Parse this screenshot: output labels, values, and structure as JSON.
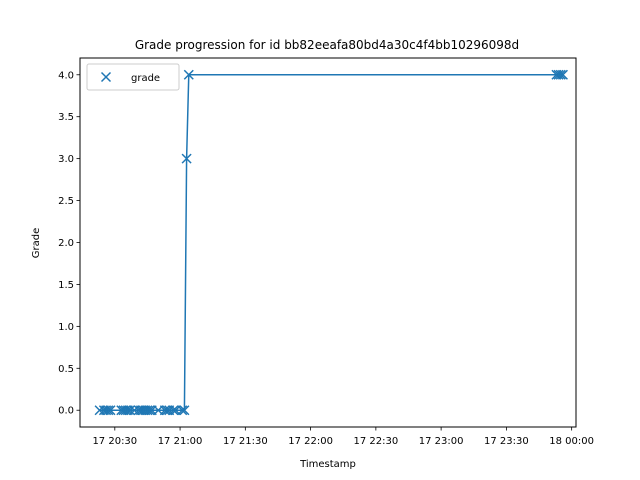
{
  "chart_data": {
    "type": "line",
    "title": "Grade progression for id bb82eeafa80bd4a30c4f4bb10296098d",
    "xlabel": "Timestamp",
    "ylabel": "Grade",
    "x_ticks": [
      "17 20:30",
      "17 21:00",
      "17 21:30",
      "17 22:00",
      "17 22:30",
      "17 23:00",
      "17 23:30",
      "18 00:00"
    ],
    "y_ticks": [
      "0.0",
      "0.5",
      "1.0",
      "1.5",
      "2.0",
      "2.5",
      "3.0",
      "3.5",
      "4.0"
    ],
    "xlim": [
      "20:14",
      "00:02"
    ],
    "ylim": [
      -0.2,
      4.2
    ],
    "grid": false,
    "legend": {
      "position": "top-left",
      "entries": [
        "grade"
      ]
    },
    "series": [
      {
        "name": "grade",
        "marker": "x",
        "color": "#1f77b4",
        "points": [
          {
            "x": "20:23",
            "y": 0
          },
          {
            "x": "20:25",
            "y": 0
          },
          {
            "x": "20:26",
            "y": 0
          },
          {
            "x": "20:27",
            "y": 0
          },
          {
            "x": "20:28",
            "y": 0
          },
          {
            "x": "20:33",
            "y": 0
          },
          {
            "x": "20:34",
            "y": 0
          },
          {
            "x": "20:35",
            "y": 0
          },
          {
            "x": "20:36",
            "y": 0
          },
          {
            "x": "20:37",
            "y": 0
          },
          {
            "x": "20:39",
            "y": 0
          },
          {
            "x": "20:41",
            "y": 0
          },
          {
            "x": "20:42",
            "y": 0
          },
          {
            "x": "20:43",
            "y": 0
          },
          {
            "x": "20:44",
            "y": 0
          },
          {
            "x": "20:45",
            "y": 0
          },
          {
            "x": "20:46",
            "y": 0
          },
          {
            "x": "20:47",
            "y": 0
          },
          {
            "x": "20:50",
            "y": 0
          },
          {
            "x": "20:53",
            "y": 0
          },
          {
            "x": "20:54",
            "y": 0
          },
          {
            "x": "20:55",
            "y": 0
          },
          {
            "x": "20:57",
            "y": 0
          },
          {
            "x": "20:58",
            "y": 0
          },
          {
            "x": "21:01",
            "y": 0
          },
          {
            "x": "21:02",
            "y": 0
          },
          {
            "x": "21:03",
            "y": 3
          },
          {
            "x": "21:04",
            "y": 4
          },
          {
            "x": "23:53",
            "y": 4
          },
          {
            "x": "23:54",
            "y": 4
          },
          {
            "x": "23:55",
            "y": 4
          },
          {
            "x": "23:56",
            "y": 4
          }
        ]
      }
    ]
  }
}
